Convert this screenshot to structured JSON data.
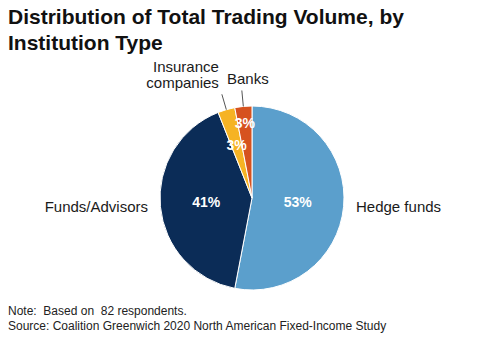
{
  "chart_data": {
    "type": "pie",
    "title": "Distribution of Total Trading Volume, by Institution Type",
    "categories": [
      "Hedge funds",
      "Funds/Advisors",
      "Insurance companies",
      "Banks"
    ],
    "values": [
      53,
      41,
      3,
      3
    ],
    "value_labels": [
      "53%",
      "41%",
      "3%",
      "3%"
    ],
    "colors": [
      "#5b9fcc",
      "#0b2c57",
      "#f6b324",
      "#d6521f"
    ],
    "data_labels": true,
    "annotations": [
      "Note:  Based on  82 respondents.",
      "Source: Coalition Greenwich 2020 North American Fixed-Income Study"
    ]
  }
}
